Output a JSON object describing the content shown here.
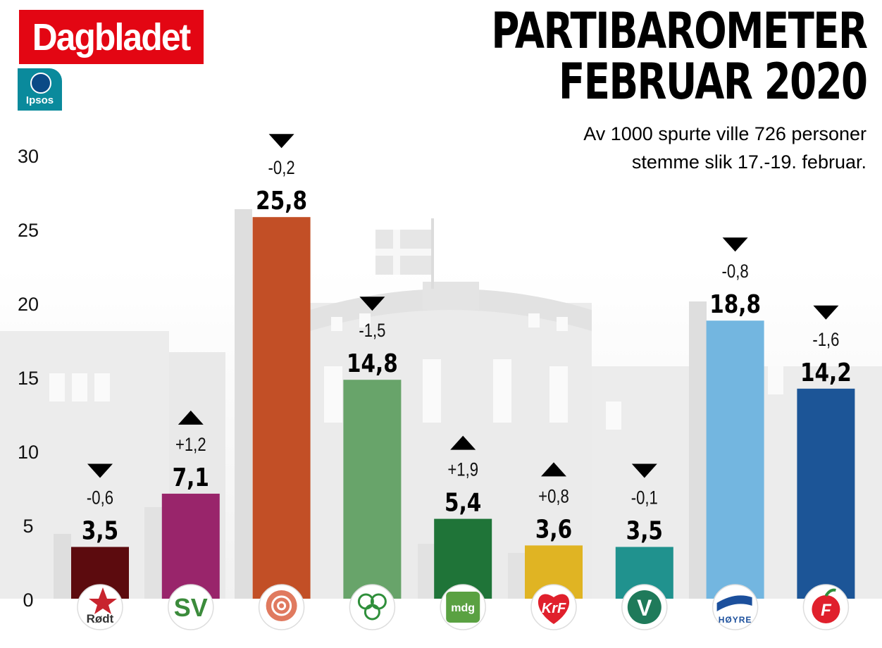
{
  "brand": "Dagbladet",
  "pollster": "Ipsos",
  "title_line1": "PARTIBAROMETER",
  "title_line2": "FEBRUAR 2020",
  "subtitle_line1": "Av 1000 spurte ville 726 personer",
  "subtitle_line2": "stemme slik 17.-19. februar.",
  "chart_data": {
    "type": "bar",
    "ylim": [
      0,
      30
    ],
    "yticks": [
      0,
      5,
      10,
      15,
      20,
      25,
      30
    ],
    "grid": false,
    "categories": [
      "Rødt",
      "SV",
      "Ap",
      "Sp",
      "MDG",
      "KrF",
      "V",
      "Høyre",
      "FrP"
    ],
    "values": [
      3.5,
      7.1,
      25.8,
      14.8,
      5.4,
      3.6,
      3.5,
      18.8,
      14.2
    ],
    "value_labels": [
      "3,5",
      "7,1",
      "25,8",
      "14,8",
      "5,4",
      "3,6",
      "3,5",
      "18,8",
      "14,2"
    ],
    "previous_values": [
      4.1,
      5.9,
      26.0,
      16.3,
      3.5,
      2.8,
      3.6,
      19.6,
      15.8
    ],
    "change_labels": [
      "-0,6",
      "+1,2",
      "-0,2",
      "-1,5",
      "+1,9",
      "+0,8",
      "-0,1",
      "-0,8",
      "-1,6"
    ],
    "change_direction": [
      "down",
      "up",
      "down",
      "down",
      "up",
      "up",
      "down",
      "down",
      "down"
    ],
    "colors": [
      "#5c0b0e",
      "#99256b",
      "#c24f26",
      "#68a46a",
      "#1f7438",
      "#e0b423",
      "#20928e",
      "#73b6e0",
      "#1c5597"
    ],
    "party_logo_text": [
      "Rødt",
      "SV",
      "",
      "",
      "mdg",
      "KrF",
      "V",
      "HØYRE",
      "F"
    ],
    "party_logo_icons": [
      "star-icon",
      "sv-logo",
      "rose-icon",
      "clover-icon",
      "mdg-logo",
      "heart-icon",
      "v-letter-icon",
      "wave-flag-icon",
      "apple-icon"
    ]
  }
}
